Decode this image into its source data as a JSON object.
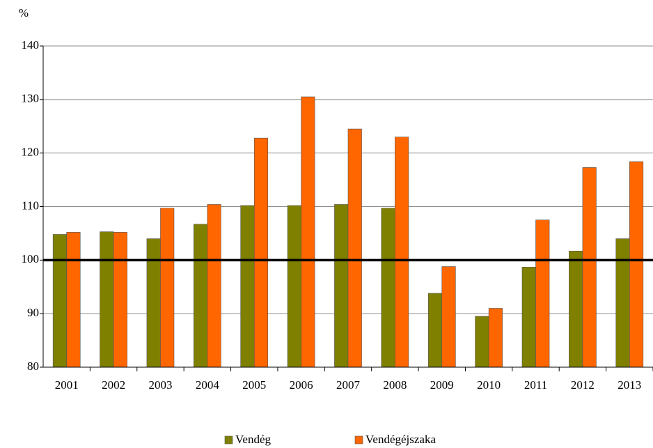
{
  "chart_data": {
    "type": "bar",
    "y_label": "%",
    "categories": [
      "2001",
      "2002",
      "2003",
      "2004",
      "2005",
      "2006",
      "2007",
      "2008",
      "2009",
      "2010",
      "2011",
      "2012",
      "2013"
    ],
    "series": [
      {
        "name": "Vendég",
        "color": "#808000",
        "values": [
          104.8,
          105.3,
          104.0,
          106.7,
          110.2,
          110.2,
          110.4,
          109.7,
          93.8,
          89.5,
          98.7,
          101.7,
          104.0
        ]
      },
      {
        "name": "Vendégéjszaka",
        "color": "#ff6600",
        "values": [
          105.2,
          105.2,
          109.7,
          110.4,
          122.8,
          130.5,
          124.5,
          123.0,
          98.8,
          91.0,
          107.5,
          117.3,
          118.4
        ]
      }
    ],
    "ylim": [
      80,
      140
    ],
    "yticks": [
      80,
      90,
      100,
      110,
      120,
      130,
      140
    ],
    "grid": true,
    "reference_line": 100,
    "legend": "bottom"
  }
}
